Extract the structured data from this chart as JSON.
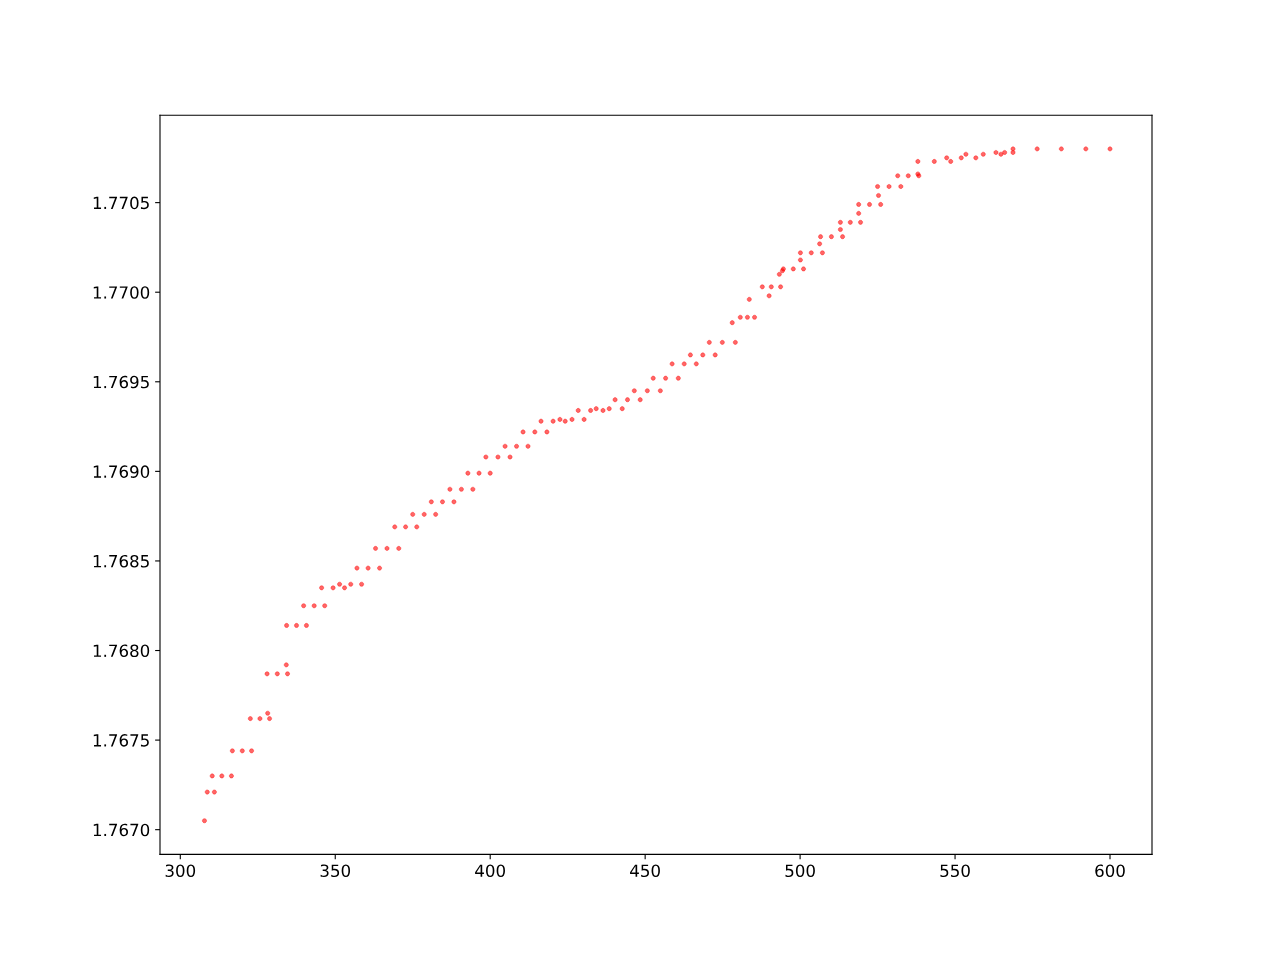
{
  "chart_data": {
    "type": "scatter",
    "series": [
      {
        "color": "#ff0000",
        "marker": "circle",
        "x": [
          307.8,
          308.7,
          311,
          310.3,
          313.4,
          316.5,
          316.8,
          320,
          323,
          322.6,
          325.7,
          328.8,
          328.2,
          328,
          331.3,
          334.6,
          334.2,
          334.3,
          337.5,
          340.7,
          339.8,
          343.2,
          346.6,
          345.6,
          349.3,
          353,
          351.4,
          355,
          358.5,
          357,
          360.6,
          364.3,
          363,
          366.7,
          370.5,
          369.2,
          372.7,
          376.3,
          375,
          378.7,
          382.4,
          381,
          384.6,
          388.3,
          387,
          390.7,
          394.4,
          392.8,
          396.4,
          400,
          398.6,
          402.5,
          406.4,
          404.8,
          408.5,
          412.2,
          410.6,
          414.4,
          418.3,
          416.4,
          420.3,
          424.2,
          422.5,
          426.4,
          430.3,
          428.4,
          432.4,
          436.4,
          434.2,
          438.4,
          442.6,
          440.3,
          444.3,
          448.4,
          446.5,
          450.7,
          454.9,
          452.6,
          456.6,
          460.7,
          458.7,
          462.6,
          466.5,
          464.6,
          468.6,
          472.6,
          470.7,
          474.9,
          479.1,
          478.1,
          480.7,
          483,
          485.3,
          483.6,
          490,
          487.8,
          490.7,
          493.7,
          493.3,
          494.3,
          494.6,
          497.8,
          501.1,
          500.1,
          500.1,
          503.6,
          507.2,
          506.3,
          506.6,
          510.1,
          513.7,
          513,
          513,
          516.2,
          519.5,
          518.9,
          518.9,
          522.4,
          526,
          525.3,
          525,
          528.7,
          532.5,
          531.5,
          534.9,
          538.3,
          538,
          538,
          543.3,
          548.6,
          547.3,
          552,
          556.7,
          553.5,
          559.1,
          564.8,
          563.2,
          566,
          568.7,
          568.7,
          576.5,
          584.3,
          592.2,
          600
        ],
        "values": [
          1.76705,
          1.76721,
          1.76721,
          1.7673,
          1.7673,
          1.7673,
          1.76744,
          1.76744,
          1.76744,
          1.76762,
          1.76762,
          1.76762,
          1.76765,
          1.76787,
          1.76787,
          1.76787,
          1.76792,
          1.76814,
          1.76814,
          1.76814,
          1.76825,
          1.76825,
          1.76825,
          1.76835,
          1.76835,
          1.76835,
          1.76837,
          1.76837,
          1.76837,
          1.76846,
          1.76846,
          1.76846,
          1.76857,
          1.76857,
          1.76857,
          1.76869,
          1.76869,
          1.76869,
          1.76876,
          1.76876,
          1.76876,
          1.76883,
          1.76883,
          1.76883,
          1.7689,
          1.7689,
          1.7689,
          1.76899,
          1.76899,
          1.76899,
          1.76908,
          1.76908,
          1.76908,
          1.76914,
          1.76914,
          1.76914,
          1.76922,
          1.76922,
          1.76922,
          1.76928,
          1.76928,
          1.76928,
          1.76929,
          1.76929,
          1.76929,
          1.76934,
          1.76934,
          1.76934,
          1.76935,
          1.76935,
          1.76935,
          1.7694,
          1.7694,
          1.7694,
          1.76945,
          1.76945,
          1.76945,
          1.76952,
          1.76952,
          1.76952,
          1.7696,
          1.7696,
          1.7696,
          1.76965,
          1.76965,
          1.76965,
          1.76972,
          1.76972,
          1.76972,
          1.76983,
          1.76986,
          1.76986,
          1.76986,
          1.76996,
          1.76998,
          1.77003,
          1.77003,
          1.77003,
          1.7701,
          1.77012,
          1.77013,
          1.77013,
          1.77013,
          1.77018,
          1.77022,
          1.77022,
          1.77022,
          1.77027,
          1.77031,
          1.77031,
          1.77031,
          1.77035,
          1.77039,
          1.77039,
          1.77039,
          1.77044,
          1.77049,
          1.77049,
          1.77049,
          1.77054,
          1.77059,
          1.77059,
          1.77059,
          1.77065,
          1.77065,
          1.77065,
          1.77066,
          1.77073,
          1.77073,
          1.77073,
          1.77075,
          1.77075,
          1.77075,
          1.77077,
          1.77077,
          1.77077,
          1.77078,
          1.77078,
          1.77078,
          1.7708,
          1.7708,
          1.7708,
          1.7708,
          1.7708
        ]
      }
    ],
    "xlim": [
      293.45,
      613.55
    ],
    "ylim": [
      1.766862,
      1.770988
    ],
    "xticks": [
      300,
      350,
      400,
      450,
      500,
      550,
      600
    ],
    "yticks": [
      {
        "value": 1.767,
        "label": "1.7670"
      },
      {
        "value": 1.7675,
        "label": "1.7675"
      },
      {
        "value": 1.768,
        "label": "1.7680"
      },
      {
        "value": 1.7685,
        "label": "1.7685"
      },
      {
        "value": 1.769,
        "label": "1.7690"
      },
      {
        "value": 1.7695,
        "label": "1.7695"
      },
      {
        "value": 1.77,
        "label": "1.7700"
      },
      {
        "value": 1.7705,
        "label": "1.7705"
      }
    ],
    "grid": false
  }
}
